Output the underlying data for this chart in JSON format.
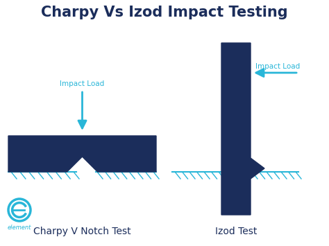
{
  "title": "Charpy Vs Izod Impact Testing",
  "title_color": "#1b2d5b",
  "title_fontsize": 15,
  "bg_color": "#ffffff",
  "dark_blue": "#1b2d5b",
  "cyan": "#29b6d8",
  "label_charpy": "Charpy V Notch Test",
  "label_izod": "Izod Test",
  "impact_load_text": "Impact Load",
  "label_fontsize": 10,
  "impact_text_fontsize": 7.5
}
